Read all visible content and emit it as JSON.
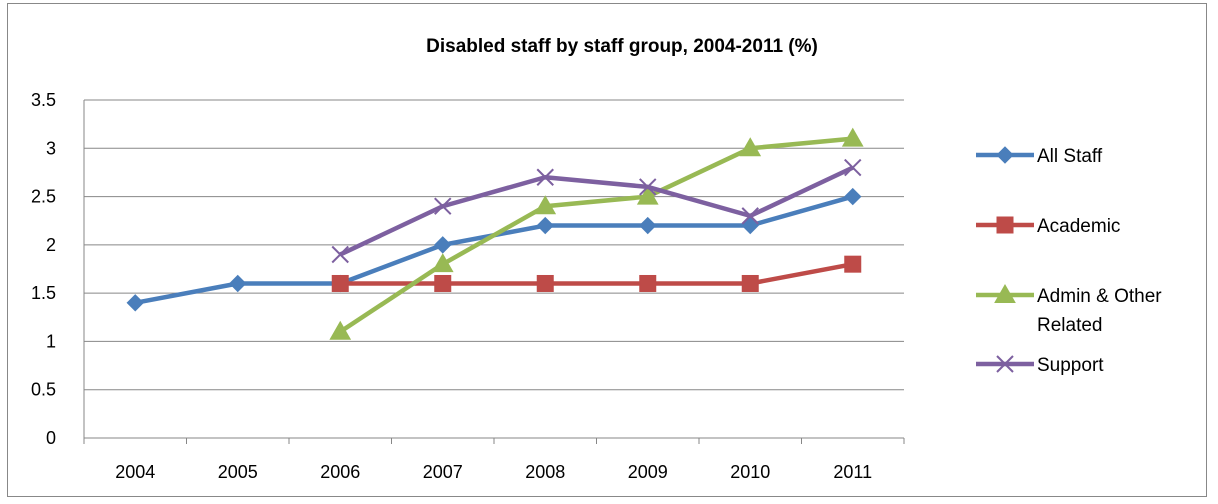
{
  "chart_data": {
    "type": "line",
    "title": "Disabled staff by staff group, 2004-2011 (%)",
    "xlabel": "",
    "ylabel": "",
    "categories": [
      "2004",
      "2005",
      "2006",
      "2007",
      "2008",
      "2009",
      "2010",
      "2011"
    ],
    "ylim": [
      0,
      3.5
    ],
    "yticks": [
      "0",
      "0.5",
      "1",
      "1.5",
      "2",
      "2.5",
      "3",
      "3.5"
    ],
    "grid": true,
    "legend_position": "right",
    "series": [
      {
        "name": "All Staff",
        "color": "#4A7EBB",
        "marker": "diamond",
        "values": [
          1.4,
          1.6,
          1.6,
          2.0,
          2.2,
          2.2,
          2.2,
          2.5
        ]
      },
      {
        "name": "Academic",
        "color": "#BE4B48",
        "marker": "square",
        "values": [
          null,
          null,
          1.6,
          1.6,
          1.6,
          1.6,
          1.6,
          1.8
        ]
      },
      {
        "name": "Admin & Other Related",
        "color": "#98B954",
        "marker": "triangle",
        "values": [
          null,
          null,
          1.1,
          1.8,
          2.4,
          2.5,
          3.0,
          3.1
        ]
      },
      {
        "name": "Support",
        "color": "#7D60A0",
        "marker": "x",
        "values": [
          null,
          null,
          1.9,
          2.4,
          2.7,
          2.6,
          2.3,
          2.8
        ]
      }
    ]
  },
  "legend": {
    "labels": [
      [
        "All Staff"
      ],
      [
        "Academic"
      ],
      [
        "Admin & Other",
        "Related"
      ],
      [
        "Support"
      ]
    ]
  }
}
